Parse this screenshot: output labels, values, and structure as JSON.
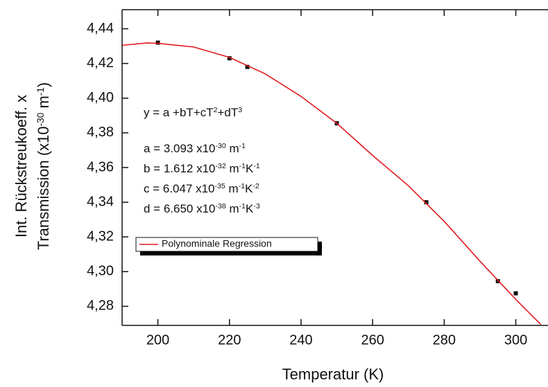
{
  "chart_data": {
    "type": "scatter",
    "x_label": "Temperatur (K)",
    "y_label_lines": [
      [
        {
          "text": "Int. Rückstreukoeff. x"
        }
      ],
      [
        {
          "text": "Transmission (x10"
        },
        {
          "text": "-30",
          "sup": true
        },
        {
          "text": " m"
        },
        {
          "text": "-1",
          "sup": true
        },
        {
          "text": ")"
        }
      ]
    ],
    "xlim": [
      190,
      309
    ],
    "ylim": [
      4.269,
      4.451
    ],
    "xticks": [
      200,
      220,
      240,
      260,
      280,
      300
    ],
    "yticks": [
      {
        "value": 4.28,
        "label": "4,28"
      },
      {
        "value": 4.3,
        "label": "4,30"
      },
      {
        "value": 4.32,
        "label": "4,32"
      },
      {
        "value": 4.34,
        "label": "4,34"
      },
      {
        "value": 4.36,
        "label": "4,36"
      },
      {
        "value": 4.38,
        "label": "4,38"
      },
      {
        "value": 4.4,
        "label": "4,40"
      },
      {
        "value": 4.42,
        "label": "4,42"
      },
      {
        "value": 4.44,
        "label": "4,44"
      }
    ],
    "series": [
      {
        "style": "markers",
        "color": "#111111",
        "x": [
          200,
          220,
          225,
          250,
          275,
          295,
          300
        ],
        "values": [
          4.432,
          4.423,
          4.418,
          4.3855,
          4.34,
          4.2945,
          4.2875
        ]
      },
      {
        "name": "Polynominale Regression",
        "style": "line",
        "color": "#e0191e",
        "x": [
          190,
          197,
          200,
          210,
          220,
          230,
          240,
          250,
          260,
          270,
          280,
          290,
          300,
          307
        ],
        "values": [
          4.4305,
          4.4318,
          4.4316,
          4.4295,
          4.4235,
          4.414,
          4.401,
          4.3855,
          4.367,
          4.3495,
          4.329,
          4.306,
          4.284,
          4.2695
        ]
      }
    ],
    "annotations": [
      [
        {
          "text": "y = a +bT+cT"
        },
        {
          "text": "2",
          "sup": true
        },
        {
          "text": "+dT"
        },
        {
          "text": "3",
          "sup": true
        }
      ],
      [
        {
          "text": "a = 3.093 x10"
        },
        {
          "text": "-30",
          "sup": true
        },
        {
          "text": " m"
        },
        {
          "text": "-1",
          "sup": true
        }
      ],
      [
        {
          "text": "b = 1.612 x10"
        },
        {
          "text": "-32",
          "sup": true
        },
        {
          "text": " m"
        },
        {
          "text": "-1",
          "sup": true
        },
        {
          "text": "K"
        },
        {
          "text": "-1",
          "sup": true
        }
      ],
      [
        {
          "text": "c = 6.047 x10"
        },
        {
          "text": "-35",
          "sup": true
        },
        {
          "text": " m"
        },
        {
          "text": "-1",
          "sup": true
        },
        {
          "text": "K"
        },
        {
          "text": "-2",
          "sup": true
        }
      ],
      [
        {
          "text": "d = 6.650 x10"
        },
        {
          "text": "-38",
          "sup": true
        },
        {
          "text": " m"
        },
        {
          "text": "-1",
          "sup": true
        },
        {
          "text": "K"
        },
        {
          "text": "-3",
          "sup": true
        }
      ]
    ]
  }
}
